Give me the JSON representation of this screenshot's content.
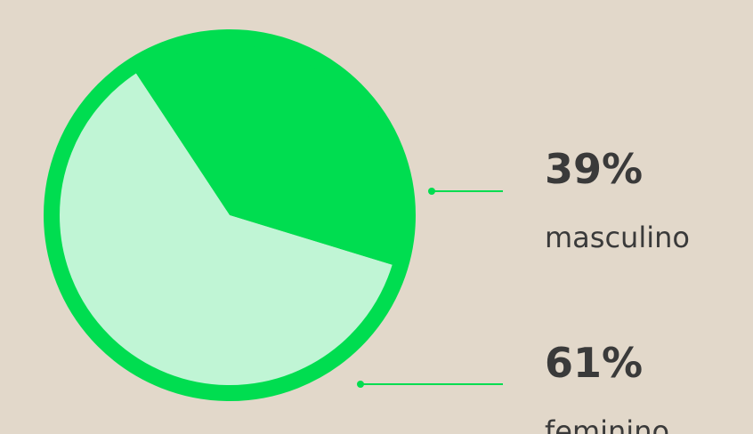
{
  "chart_data": {
    "type": "pie",
    "categories": [
      "masculino",
      "feminino"
    ],
    "values": [
      39,
      61
    ],
    "value_labels": [
      "39%",
      "61%"
    ],
    "colors": [
      "#00dd50",
      "#c0f5d5"
    ]
  }
}
